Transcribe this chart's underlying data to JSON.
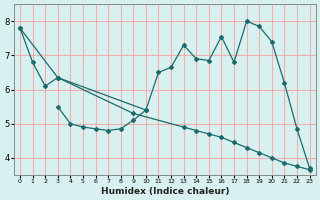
{
  "line1_x": [
    0,
    1,
    2,
    3,
    10,
    11,
    12,
    13,
    14,
    15,
    16,
    17,
    18,
    19,
    20,
    21,
    22,
    23
  ],
  "line1_y": [
    7.8,
    6.8,
    6.1,
    6.35,
    5.4,
    6.5,
    6.65,
    7.3,
    6.9,
    6.85,
    7.55,
    6.8,
    8.0,
    7.85,
    7.4,
    6.2,
    4.85,
    3.7
  ],
  "line2_x": [
    3,
    4,
    5,
    6,
    7,
    8,
    9,
    10
  ],
  "line2_y": [
    5.5,
    5.0,
    4.9,
    4.85,
    4.8,
    4.85,
    5.1,
    5.4
  ],
  "line3_x": [
    0,
    3,
    9,
    13,
    14,
    15,
    16,
    17,
    18,
    19,
    20,
    21,
    22,
    23
  ],
  "line3_y": [
    7.8,
    6.35,
    5.3,
    4.9,
    4.8,
    4.7,
    4.6,
    4.45,
    4.3,
    4.15,
    4.0,
    3.85,
    3.75,
    3.65
  ],
  "color": "#1a6b6b",
  "bg_color": "#d9f0f0",
  "grid_color": "#f0b0b0",
  "xlabel": "Humidex (Indice chaleur)",
  "xlim": [
    -0.5,
    23.5
  ],
  "ylim": [
    3.5,
    8.5
  ],
  "yticks": [
    4,
    5,
    6,
    7,
    8
  ],
  "xticks": [
    0,
    1,
    2,
    3,
    4,
    5,
    6,
    7,
    8,
    9,
    10,
    11,
    12,
    13,
    14,
    15,
    16,
    17,
    18,
    19,
    20,
    21,
    22,
    23
  ]
}
